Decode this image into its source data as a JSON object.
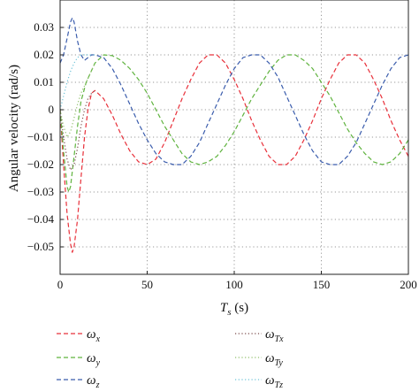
{
  "chart_data": {
    "type": "line",
    "title": "",
    "ylabel": "Angular velocity (rad/s)",
    "xlabel_main": "T",
    "xlabel_sub": "s",
    "xlabel_unit": " (s)",
    "xlim": [
      0,
      200
    ],
    "ylim": [
      -0.06,
      0.04
    ],
    "xticks": [
      0,
      50,
      100,
      150,
      200
    ],
    "xtick_labels": [
      "0",
      "50",
      "100",
      "150",
      "200"
    ],
    "yticks": [
      -0.05,
      -0.04,
      -0.03,
      -0.02,
      -0.01,
      0,
      0.01,
      0.02,
      0.03
    ],
    "ytick_labels": [
      "−0.05",
      "−0.04",
      "−0.03",
      "−0.02",
      "−0.01",
      "0",
      "0.01",
      "0.02",
      "0.03"
    ],
    "grid": true,
    "legend_placement": "bottom",
    "series": [
      {
        "name": "ω",
        "sub": "x",
        "style": "dashed",
        "color": "#e8303a",
        "x": [
          0,
          2,
          4,
          6,
          7,
          8,
          10,
          12,
          14,
          16,
          18,
          20,
          25,
          30,
          35,
          40,
          45,
          50,
          55,
          60,
          65,
          70,
          75,
          80,
          85,
          90,
          95,
          100,
          105,
          110,
          115,
          120,
          125,
          130,
          135,
          140,
          145,
          150,
          155,
          160,
          165,
          170,
          175,
          180,
          185,
          190,
          195,
          200
        ],
        "y": [
          0.0,
          -0.02,
          -0.038,
          -0.049,
          -0.052,
          -0.05,
          -0.04,
          -0.025,
          -0.01,
          0.0,
          0.006,
          0.007,
          0.004,
          -0.002,
          -0.009,
          -0.015,
          -0.019,
          -0.02,
          -0.018,
          -0.012,
          -0.004,
          0.004,
          0.011,
          0.017,
          0.02,
          0.02,
          0.017,
          0.011,
          0.004,
          -0.004,
          -0.011,
          -0.017,
          -0.02,
          -0.02,
          -0.017,
          -0.011,
          -0.004,
          0.004,
          0.011,
          0.017,
          0.02,
          0.02,
          0.017,
          0.011,
          0.004,
          -0.004,
          -0.011,
          -0.017
        ]
      },
      {
        "name": "ω",
        "sub": "y",
        "style": "dashed",
        "color": "#5fb33e",
        "x": [
          0,
          2,
          4,
          5,
          6,
          8,
          10,
          12,
          15,
          20,
          25,
          30,
          35,
          40,
          45,
          50,
          55,
          60,
          65,
          70,
          75,
          80,
          85,
          90,
          95,
          100,
          105,
          110,
          115,
          120,
          125,
          130,
          135,
          140,
          145,
          150,
          155,
          160,
          165,
          170,
          175,
          180,
          185,
          190,
          195,
          200
        ],
        "y": [
          0.0,
          -0.015,
          -0.028,
          -0.03,
          -0.028,
          -0.017,
          -0.006,
          0.003,
          0.01,
          0.017,
          0.02,
          0.0197,
          0.018,
          0.015,
          0.011,
          0.006,
          0.0,
          -0.006,
          -0.011,
          -0.016,
          -0.019,
          -0.02,
          -0.019,
          -0.017,
          -0.013,
          -0.008,
          -0.002,
          0.004,
          0.009,
          0.014,
          0.018,
          0.02,
          0.02,
          0.018,
          0.015,
          0.01,
          0.005,
          -0.001,
          -0.007,
          -0.012,
          -0.016,
          -0.019,
          -0.02,
          -0.019,
          -0.016,
          -0.011
        ]
      },
      {
        "name": "ω",
        "sub": "z",
        "style": "dashed",
        "color": "#3a5cac",
        "x": [
          0,
          2,
          4,
          6,
          7,
          8,
          10,
          12,
          14,
          16,
          18,
          20,
          25,
          30,
          35,
          40,
          45,
          50,
          55,
          60,
          65,
          70,
          75,
          80,
          85,
          90,
          95,
          100,
          105,
          110,
          115,
          120,
          125,
          130,
          135,
          140,
          145,
          150,
          155,
          160,
          165,
          170,
          175,
          180,
          185,
          190,
          195,
          200
        ],
        "y": [
          0.017,
          0.02,
          0.026,
          0.032,
          0.0335,
          0.032,
          0.025,
          0.02,
          0.018,
          0.019,
          0.02,
          0.02,
          0.019,
          0.015,
          0.009,
          0.002,
          -0.005,
          -0.011,
          -0.016,
          -0.019,
          -0.02,
          -0.02,
          -0.017,
          -0.012,
          -0.005,
          0.002,
          0.009,
          0.015,
          0.019,
          0.02,
          0.02,
          0.017,
          0.012,
          0.005,
          -0.002,
          -0.009,
          -0.015,
          -0.019,
          -0.02,
          -0.02,
          -0.017,
          -0.012,
          -0.005,
          0.002,
          0.009,
          0.015,
          0.019,
          0.02
        ]
      },
      {
        "name": "ω",
        "sub": "Tx",
        "style": "dotted",
        "color": "#7a4a4a",
        "x": [
          0,
          2,
          4,
          6,
          8,
          10,
          12,
          14,
          16,
          18,
          20
        ],
        "y": [
          0.0,
          -0.01,
          -0.018,
          -0.022,
          -0.02,
          -0.014,
          -0.006,
          0.0,
          0.004,
          0.006,
          0.007
        ]
      },
      {
        "name": "ω",
        "sub": "Ty",
        "style": "dotted",
        "color": "#8fbf6a",
        "x": [
          0,
          2,
          4,
          6,
          8,
          10,
          12,
          15,
          20
        ],
        "y": [
          0.0,
          -0.006,
          -0.01,
          -0.008,
          -0.003,
          0.002,
          0.006,
          0.01,
          0.017
        ]
      },
      {
        "name": "ω",
        "sub": "Tz",
        "style": "dotted",
        "color": "#6ec3d8",
        "x": [
          0,
          2,
          4,
          6,
          8,
          10,
          12,
          14,
          16,
          18,
          20
        ],
        "y": [
          0.0,
          0.005,
          0.01,
          0.014,
          0.017,
          0.019,
          0.02,
          0.02,
          0.02,
          0.02,
          0.02
        ]
      }
    ]
  }
}
